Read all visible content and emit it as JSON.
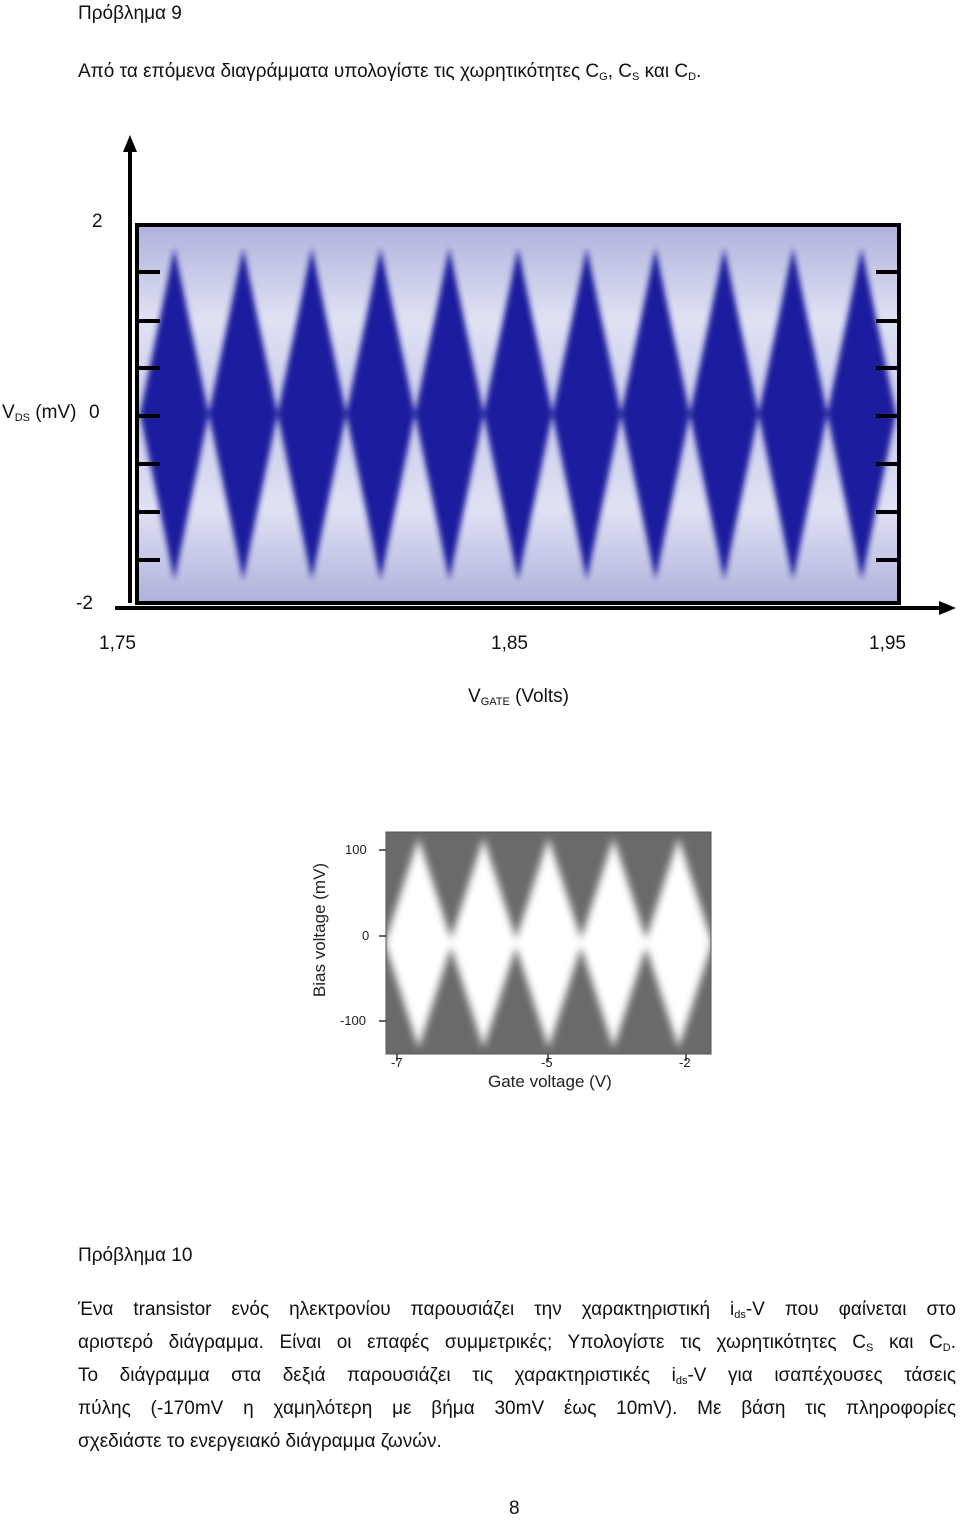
{
  "problem9": {
    "heading": "Πρόβλημα 9",
    "prompt_text": "Από τα επόμενα διαγράμματα υπολογίστε τις χωρητικότητες C",
    "sub_g": "G",
    "sep1": ", C",
    "sub_s": "S",
    "sep2": " και C",
    "sub_d": "D",
    "end": "."
  },
  "chart_data": [
    {
      "type": "heatmap",
      "title": "",
      "xlabel_main": "V",
      "xlabel_sub": "GATE",
      "xlabel_unit": "(Volts)",
      "ylabel_main": "V",
      "ylabel_sub": "DS",
      "ylabel_unit": "(mV)",
      "x_ticks": [
        "1,75",
        "1,85",
        "1,95"
      ],
      "y_ticks": [
        "2",
        "0",
        "-2"
      ],
      "xlim": [
        1.75,
        1.95
      ],
      "ylim": [
        -2,
        2
      ],
      "colormap": [
        "#ffffff",
        "#1a1a9e"
      ],
      "pattern": "Coulomb diamonds",
      "diamond_count": 11
    },
    {
      "type": "heatmap",
      "title": "",
      "xlabel": "Gate voltage (V)",
      "ylabel": "Bias voltage (mV)",
      "x_ticks": [
        "-7",
        "-5",
        "-2"
      ],
      "y_ticks": [
        "100",
        "0",
        "-100"
      ],
      "xlim": [
        -7.3,
        -1.8
      ],
      "ylim": [
        -125,
        125
      ],
      "colormap": [
        "#ffffff",
        "#111111"
      ],
      "pattern": "Coulomb diamonds",
      "diamond_count": 5
    }
  ],
  "problem10": {
    "heading": "Πρόβλημα 10",
    "l1a": "Ένα transistor ενός ηλεκτρονίου παρουσιάζει την χαρακτηριστική i",
    "l1sub": "ds",
    "l1b": "-V που φαίνεται στο",
    "l2a": "αριστερό διάγραμμα. Είναι οι επαφές συμμετρικές; Υπολογίστε τις χωρητικότητες C",
    "l2sub1": "S",
    "l2b": " και C",
    "l2sub2": "D",
    "l2c": ".",
    "l3a": "Το διάγραμμα στα δεξιά παρουσιάζει τις χαρακτηριστικές i",
    "l3sub": "ds",
    "l3b": "-V για ισαπέχουσες τάσεις",
    "l4": "πύλης (-170mV η χαμηλότερη με βήμα 30mV έως 10mV). Με βάση τις πληροφορίες",
    "l5": "σχεδιάστε το ενεργειακό διάγραμμα ζωνών."
  },
  "page_number": "8"
}
